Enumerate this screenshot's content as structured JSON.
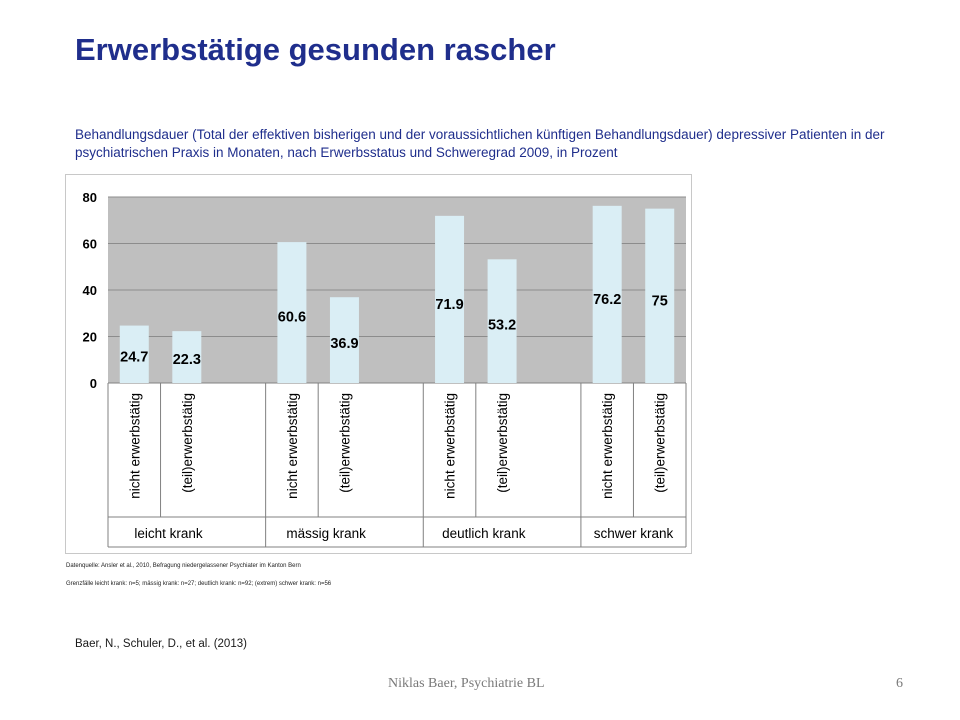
{
  "slide": {
    "title": "Erwerbstätige gesunden rascher",
    "subtitle": "Behandlungsdauer (Total der effektiven bisherigen und der  voraussichtlichen künftigen Behandlungsdauer) depressiver Patienten in der psychiatrischen Praxis in Monaten, nach Erwerbsstatus und Schweregrad 2009, in Prozent",
    "source_line1": "Datenquelle: Ansler et al., 2010, Befragung niedergelassener Psychiater im Kanton Bern",
    "source_line2": "Grenzfälle leicht krank: n=5; mässig krank: n=27; deutlich krank: n=92; (extrem) schwer krank: n=56",
    "citation": "Baer, N., Schuler, D., et al. (2013)",
    "footer": "Niklas Baer, Psychiatrie BL",
    "page_number": "6"
  },
  "chart_data": {
    "type": "bar",
    "groups": [
      {
        "label": "leicht krank",
        "categories": [
          "nicht erwerbstätig",
          "(teil)erwerbstätig"
        ],
        "values": [
          24.7,
          22.3
        ]
      },
      {
        "label": "mässig krank",
        "categories": [
          "nicht erwerbstätig",
          "(teil)erwerbstätig"
        ],
        "values": [
          60.6,
          36.9
        ]
      },
      {
        "label": "deutlich krank",
        "categories": [
          "nicht erwerbstätig",
          "(teil)erwerbstätig"
        ],
        "values": [
          71.9,
          53.2
        ]
      },
      {
        "label": "schwer krank",
        "categories": [
          "nicht erwerbstätig",
          "(teil)erwerbstätig"
        ],
        "values": [
          76.2,
          75
        ]
      }
    ],
    "value_labels": [
      "24.7",
      "22.3",
      "60.6",
      "36.9",
      "71.9",
      "53.2",
      "76.2",
      "75"
    ],
    "y_ticks": [
      "0",
      "20",
      "40",
      "60",
      "80"
    ],
    "ylim": [
      0,
      80
    ],
    "grid": true,
    "legend": "none",
    "colors": {
      "bar_fill": "#daeef5",
      "plot_bg": "#bfbfbf",
      "grid": "#8c8c8c"
    }
  }
}
